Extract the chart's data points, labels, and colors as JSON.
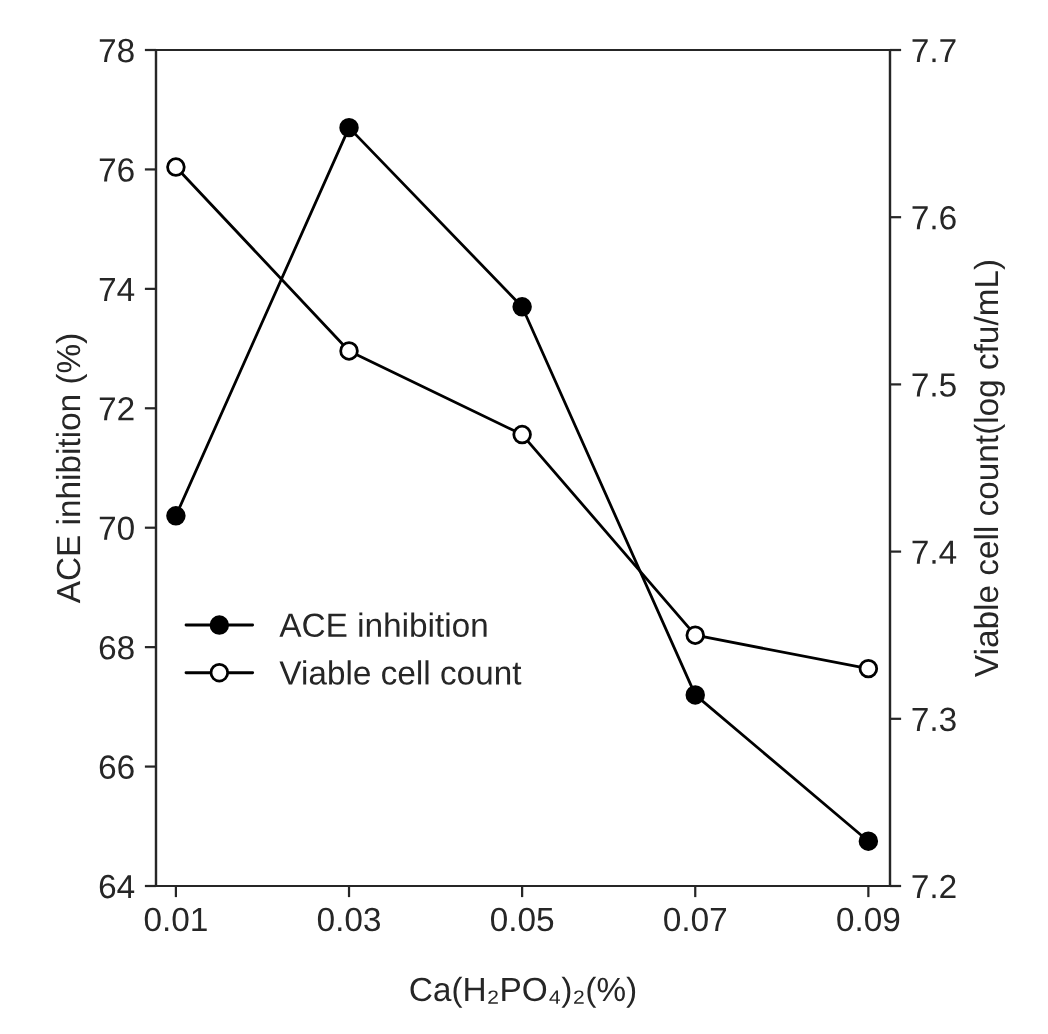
{
  "chart_data": {
    "type": "line",
    "xlabel": "Ca(H₂PO₄)₂(%)",
    "ylabel": "ACE inhibition (%)",
    "y2label": "Viable cell count(log cfu/mL)",
    "x": [
      0.01,
      0.03,
      0.05,
      0.07,
      0.09
    ],
    "series": [
      {
        "name": "ACE inhibition",
        "color": "#000000",
        "values": [
          70.2,
          76.7,
          73.7,
          67.2,
          64.75
        ],
        "marker": "circle"
      },
      {
        "name": "Viable cell count",
        "color": "#000000",
        "values": [
          7.63,
          7.52,
          7.47,
          7.35,
          7.33
        ],
        "marker": "circle",
        "axis": "y2"
      }
    ],
    "xlim": [
      0.0077,
      0.0925
    ],
    "xticks": [
      0.01,
      0.03,
      0.05,
      0.07,
      0.09
    ],
    "ylim": [
      64,
      78
    ],
    "yticks": [
      64,
      66,
      68,
      70,
      72,
      74,
      76,
      78
    ],
    "y2lim": [
      7.2,
      7.7
    ],
    "y2ticks": [
      7.2,
      7.3,
      7.4,
      7.5,
      7.6,
      7.7
    ],
    "grid": false,
    "legend": "left",
    "line_style": "solid"
  }
}
